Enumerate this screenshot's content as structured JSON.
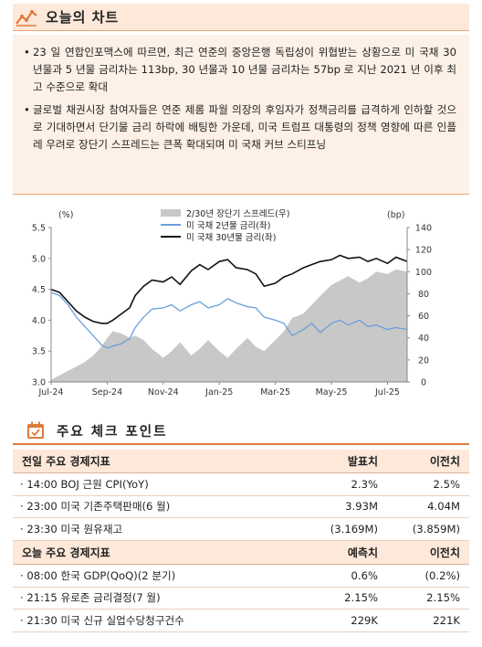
{
  "section1": {
    "title": "오늘의 차트",
    "icon": "chart-line-icon"
  },
  "bullets": [
    "23 일 연합인포맥스에 따르면, 최근 연준의 중앙은행 독립성이 위협받는 상황으로 미 국채 30 년물과 5 년물 금리차는 113bp, 30 년물과 10 년물 금리차는 57bp 로 지난 2021 년 이후 최고 수준으로 확대",
    "글로벌 채권시장 참여자들은 연준 제롬 파월 의장의 후임자가 정책금리를 급격하게 인하할 것으로 기대하면서 단기물 금리 하락에 배팅한 가운데, 미국 트럼프 대통령의 정책 영향에 따른 인플레 우려로 장단기 스프레드는 큰폭 확대되며 미 국채 커브 스티프닝"
  ],
  "bullet_mark": "•",
  "chart_data": {
    "type": "line",
    "left_unit": "(%)",
    "right_unit": "(bp)",
    "x_ticks": [
      "Jul-24",
      "Sep-24",
      "Nov-24",
      "Jan-25",
      "Mar-25",
      "May-25",
      "Jul-25"
    ],
    "y_left_ticks": [
      "5.5",
      "5.0",
      "4.5",
      "4.0",
      "3.5",
      "3.0"
    ],
    "y_right_ticks": [
      "140",
      "120",
      "100",
      "80",
      "60",
      "40",
      "20",
      "0"
    ],
    "ylim_left": [
      3.0,
      5.5
    ],
    "ylim_right": [
      0,
      140
    ],
    "x_months": [
      0,
      12.7
    ],
    "series": [
      {
        "name": "2/30년 장단기 스프레드(우)",
        "type": "area",
        "axis": "right",
        "color": "#c8c8c8",
        "x": [
          0,
          0.3,
          0.6,
          0.9,
          1.2,
          1.5,
          1.8,
          2.0,
          2.2,
          2.5,
          2.8,
          3.0,
          3.3,
          3.6,
          4.0,
          4.3,
          4.6,
          5.0,
          5.3,
          5.6,
          6.0,
          6.3,
          6.6,
          7.0,
          7.3,
          7.6,
          8.0,
          8.3,
          8.6,
          9.0,
          9.3,
          9.6,
          10.0,
          10.3,
          10.6,
          11.0,
          11.3,
          11.6,
          12.0,
          12.3,
          12.7
        ],
        "values": [
          2,
          6,
          10,
          14,
          18,
          24,
          32,
          40,
          46,
          44,
          40,
          42,
          38,
          30,
          22,
          28,
          36,
          24,
          30,
          38,
          28,
          22,
          30,
          40,
          32,
          28,
          38,
          46,
          58,
          62,
          70,
          78,
          88,
          92,
          96,
          90,
          94,
          100,
          98,
          102,
          100
        ]
      },
      {
        "name": "미 국채 2년물 금리(좌)",
        "type": "line",
        "axis": "left",
        "color": "#6a9fd8",
        "x": [
          0,
          0.3,
          0.6,
          0.9,
          1.2,
          1.5,
          1.8,
          2.0,
          2.2,
          2.5,
          2.8,
          3.0,
          3.3,
          3.6,
          4.0,
          4.3,
          4.6,
          5.0,
          5.3,
          5.6,
          6.0,
          6.3,
          6.6,
          7.0,
          7.3,
          7.6,
          8.0,
          8.3,
          8.6,
          9.0,
          9.3,
          9.6,
          10.0,
          10.3,
          10.6,
          11.0,
          11.3,
          11.6,
          12.0,
          12.3,
          12.7
        ],
        "values": [
          4.45,
          4.4,
          4.25,
          4.05,
          3.9,
          3.75,
          3.6,
          3.55,
          3.58,
          3.62,
          3.7,
          3.88,
          4.05,
          4.18,
          4.2,
          4.25,
          4.15,
          4.25,
          4.3,
          4.2,
          4.25,
          4.35,
          4.28,
          4.22,
          4.2,
          4.05,
          4.0,
          3.95,
          3.75,
          3.85,
          3.95,
          3.8,
          3.95,
          4.0,
          3.92,
          4.0,
          3.9,
          3.92,
          3.85,
          3.88,
          3.85
        ]
      },
      {
        "name": "미 국채 30년물 금리(좌)",
        "type": "line",
        "axis": "left",
        "color": "#111111",
        "x": [
          0,
          0.3,
          0.6,
          0.9,
          1.2,
          1.5,
          1.8,
          2.0,
          2.2,
          2.5,
          2.8,
          3.0,
          3.3,
          3.6,
          4.0,
          4.3,
          4.6,
          5.0,
          5.3,
          5.6,
          6.0,
          6.3,
          6.6,
          7.0,
          7.3,
          7.6,
          8.0,
          8.3,
          8.6,
          9.0,
          9.3,
          9.6,
          10.0,
          10.3,
          10.6,
          11.0,
          11.3,
          11.6,
          12.0,
          12.3,
          12.7
        ],
        "values": [
          4.5,
          4.45,
          4.3,
          4.15,
          4.05,
          3.98,
          3.95,
          3.95,
          4.0,
          4.1,
          4.2,
          4.4,
          4.55,
          4.65,
          4.62,
          4.7,
          4.58,
          4.8,
          4.9,
          4.82,
          4.95,
          4.98,
          4.85,
          4.82,
          4.75,
          4.55,
          4.6,
          4.7,
          4.75,
          4.85,
          4.9,
          4.95,
          4.98,
          5.05,
          5.0,
          5.02,
          4.95,
          5.0,
          4.92,
          5.02,
          4.95
        ]
      }
    ]
  },
  "section2": {
    "title": "주요 체크 포인트",
    "icon": "calendar-check-icon"
  },
  "table1": {
    "headers": [
      "전일 주요 경제지표",
      "발표치",
      "이전치"
    ],
    "rows": [
      [
        "· 14:00 BOJ 근원 CPI(YoY)",
        "2.3%",
        "2.5%"
      ],
      [
        "· 23:00 미국 기존주택판매(6 월)",
        "3.93M",
        "4.04M"
      ],
      [
        "· 23:30 미국 원유재고",
        "(3.169M)",
        "(3.859M)"
      ]
    ]
  },
  "table2": {
    "headers": [
      "오늘 주요 경제지표",
      "예측치",
      "이전치"
    ],
    "rows": [
      [
        "· 08:00 한국 GDP(QoQ)(2 분기)",
        "0.6%",
        "(0.2%)"
      ],
      [
        "· 21:15 유로존 금리결정(7 월)",
        "2.15%",
        "2.15%"
      ],
      [
        "· 21:30 미국 신규 실업수당청구건수",
        "229K",
        "221K"
      ]
    ]
  }
}
